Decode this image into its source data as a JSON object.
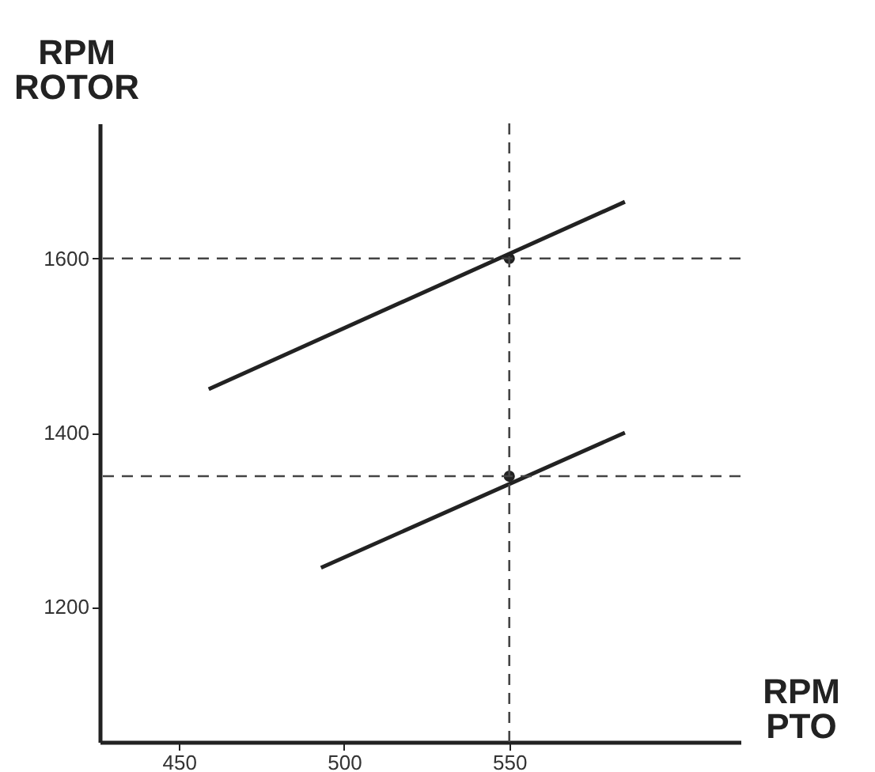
{
  "chart_data": {
    "type": "line",
    "xlabel": "RPM PTO",
    "ylabel": "RPM ROTOR",
    "xlim": [
      426,
      620
    ],
    "ylim": [
      1045,
      1755
    ],
    "xticks": [
      450,
      500,
      550
    ],
    "yticks": [
      1200,
      1400,
      1600
    ],
    "grid": false,
    "line_style": "solid",
    "series": [
      {
        "color": "#222222",
        "x": [
          459,
          585
        ],
        "values": [
          1450,
          1665
        ]
      },
      {
        "color": "#222222",
        "x": [
          493,
          585
        ],
        "values": [
          1245,
          1400
        ]
      },
      {
        "type": "scatter",
        "marker": "circle",
        "color": "#222222",
        "x": [
          550
        ],
        "values": [
          1600
        ]
      },
      {
        "type": "scatter",
        "marker": "circle",
        "color": "#222222",
        "x": [
          550
        ],
        "values": [
          1350
        ]
      }
    ],
    "ref_lines": [
      {
        "axis": "y",
        "value": 1600,
        "color": "#444444",
        "line_style": "dashed"
      },
      {
        "axis": "y",
        "value": 1350,
        "color": "#444444",
        "line_style": "dashed"
      },
      {
        "axis": "x",
        "value": 550,
        "color": "#444444",
        "line_style": "dashed"
      }
    ]
  }
}
